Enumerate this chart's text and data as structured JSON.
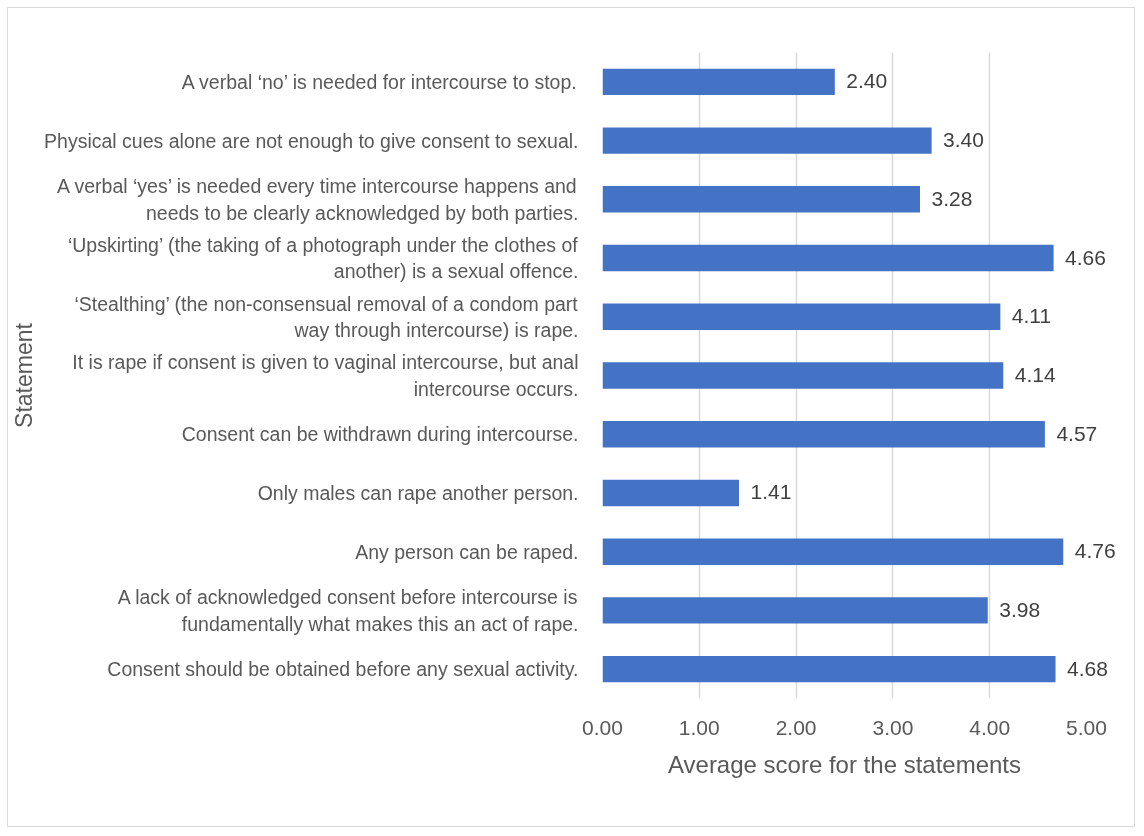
{
  "chart_data": {
    "type": "bar",
    "orientation": "horizontal",
    "xlabel": "Average score for the statements",
    "ylabel": "Statement",
    "categories": [
      "A verbal ‘no’ is needed for intercourse to stop.",
      "Physical cues alone are not enough to give consent to sexual.",
      "A verbal ‘yes’ is needed every time intercourse happens and\nneeds to be clearly acknowledged by both parties.",
      "‘Upskirting’ (the taking of a photograph under the clothes of\nanother) is a sexual offence.",
      "‘Stealthing’ (the non-consensual removal of a condom part\nway through intercourse) is rape.",
      "It is rape if consent is given to vaginal intercourse, but anal\nintercourse occurs.",
      "Consent can be withdrawn during intercourse.",
      "Only males can rape another person.",
      "Any person can be raped.",
      "A lack of acknowledged consent before intercourse is\nfundamentally what makes this an act of rape.",
      "Consent should be obtained before any sexual activity."
    ],
    "values": [
      2.4,
      3.4,
      3.28,
      4.66,
      4.11,
      4.14,
      4.57,
      1.41,
      4.76,
      3.98,
      4.68
    ],
    "value_labels": [
      "2.40",
      "3.40",
      "3.28",
      "4.66",
      "4.11",
      "4.14",
      "4.57",
      "1.41",
      "4.76",
      "3.98",
      "4.68"
    ],
    "color": "#4472c4",
    "xlim": [
      0,
      5
    ],
    "xticks": [
      {
        "value": 0,
        "label": "0.00"
      },
      {
        "value": 1,
        "label": "1.00"
      },
      {
        "value": 2,
        "label": "2.00"
      },
      {
        "value": 3,
        "label": "3.00"
      },
      {
        "value": 4,
        "label": "4.00"
      },
      {
        "value": 5,
        "label": "5.00"
      }
    ],
    "grid": "x"
  }
}
